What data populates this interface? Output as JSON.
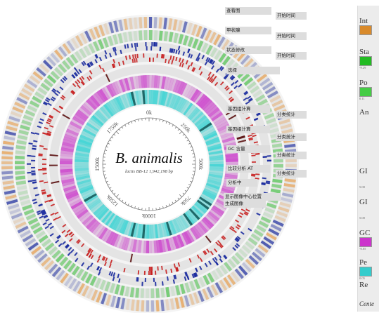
{
  "genome": {
    "name": "B. animalis",
    "subtitle": "lactis BB-12   1,942,198 bp",
    "ticks": [
      "0k",
      "250k",
      "500k",
      "750k",
      "1000k",
      "1250k",
      "1500k",
      "1750k"
    ]
  },
  "labels": {
    "l1": "查看图",
    "l2": "甲状腺",
    "l3": "状态修改",
    "l4": "选择",
    "r1": "开始时间",
    "r2": "开始时间",
    "r3": "开始时间",
    "inner": [
      "基因组计算",
      "基因组计算",
      "GC 含量",
      "比较分析 AT",
      "分析中"
    ],
    "inner_right": [
      "分类统计",
      "分类统计",
      "分类统计",
      "分类统计"
    ],
    "ann1": "显示图像中心位置",
    "ann2": "生成图像"
  },
  "legend": {
    "items": [
      {
        "text": "Int",
        "swatch": "#d98a2b",
        "num": ""
      },
      {
        "text": "Sta",
        "swatch": "#22bb22",
        "num": "-9.29"
      },
      {
        "text": "Po",
        "swatch": "#44cc44",
        "num": "0.11"
      },
      {
        "text": "An",
        "swatch": "",
        "num": ""
      },
      {
        "text": "GI",
        "swatch": "",
        "num": "5.00"
      },
      {
        "text": "GI",
        "swatch": "",
        "num": "5.00"
      },
      {
        "text": "GC",
        "swatch": "#cc33cc",
        "num": "-0.05"
      },
      {
        "text": "Pe",
        "swatch": "#33cccc",
        "num": "0.05"
      },
      {
        "text": "Re",
        "swatch": "",
        "num": ""
      },
      {
        "text": "Cente",
        "swatch": "",
        "num": ""
      }
    ]
  },
  "colors": {
    "ring_bg": "#e4e4e4",
    "blue": "#1a2a9e",
    "red": "#c81e1e",
    "green": "#52c452",
    "magenta": "#cc44cc",
    "cyan": "#3fd4d4",
    "orange": "#e8a050"
  }
}
